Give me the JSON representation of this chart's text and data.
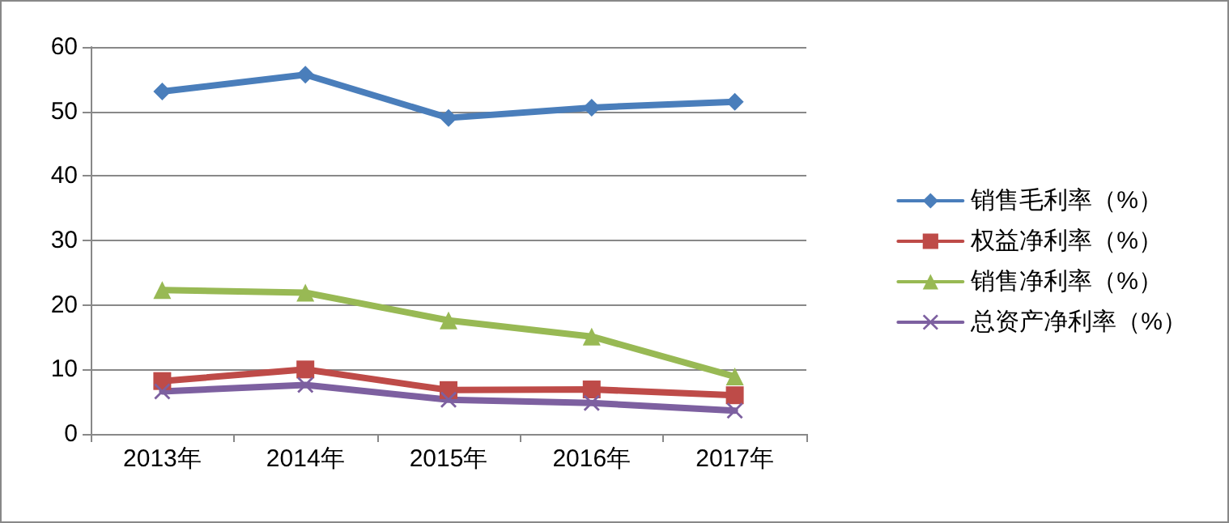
{
  "chart_data": {
    "type": "line",
    "categories": [
      "2013年",
      "2014年",
      "2015年",
      "2016年",
      "2017年"
    ],
    "series": [
      {
        "name": "销售毛利率（%）",
        "color": "#4a7ebb",
        "marker": "diamond",
        "values": [
          53.1,
          55.7,
          49.0,
          50.6,
          51.5
        ]
      },
      {
        "name": "权益净利率（%）",
        "color": "#be4b48",
        "marker": "square",
        "values": [
          8.2,
          10.0,
          6.8,
          6.9,
          6.0
        ]
      },
      {
        "name": "销售净利率（%）",
        "color": "#98b954",
        "marker": "triangle",
        "values": [
          22.3,
          21.9,
          17.6,
          15.1,
          8.9
        ]
      },
      {
        "name": "总资产净利率（%）",
        "color": "#7d60a0",
        "marker": "cross",
        "values": [
          6.6,
          7.6,
          5.3,
          4.8,
          3.6
        ]
      }
    ],
    "ylim": [
      0,
      60
    ],
    "yticks": [
      0,
      10,
      20,
      30,
      40,
      50,
      60
    ],
    "grid": "y",
    "legend": "right",
    "line_style": "solid"
  }
}
